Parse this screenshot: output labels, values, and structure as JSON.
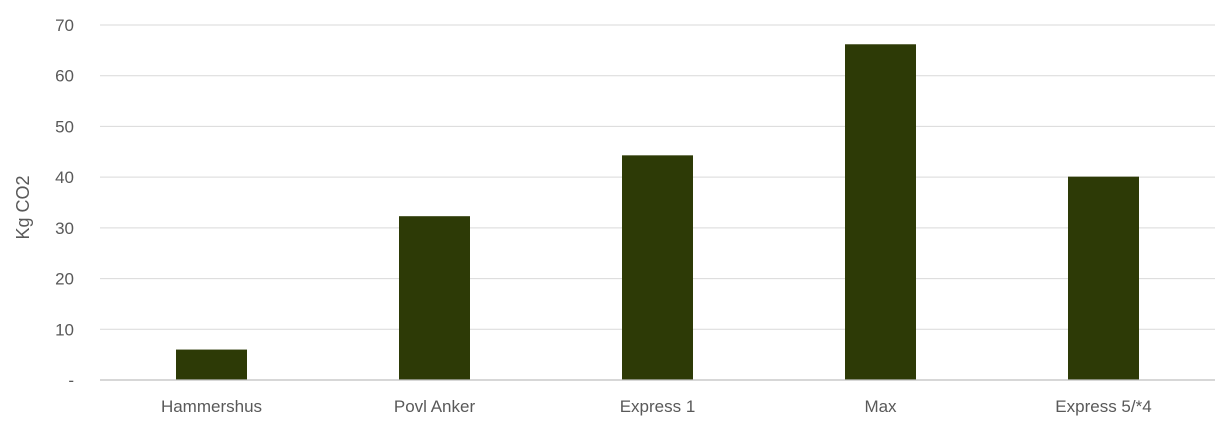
{
  "chart_data": {
    "type": "bar",
    "categories": [
      "Hammershus",
      "Povl Anker",
      "Express 1",
      "Max",
      "Express 5/*4"
    ],
    "values": [
      6,
      32.3,
      44.3,
      66.2,
      40.1
    ],
    "title": "",
    "xlabel": "",
    "ylabel": "Kg CO2",
    "ylim": [
      0,
      70
    ],
    "yticks": [
      0,
      10,
      20,
      30,
      40,
      50,
      60,
      70
    ],
    "ytick_labels": [
      "-",
      "10",
      "20",
      "30",
      "40",
      "50",
      "60",
      "70"
    ],
    "grid": true,
    "legend": "none",
    "bar_color": "#2d3a06",
    "grid_color": "#d9d9d9",
    "axis_color": "#bfbfbf",
    "text_color": "#595959"
  }
}
